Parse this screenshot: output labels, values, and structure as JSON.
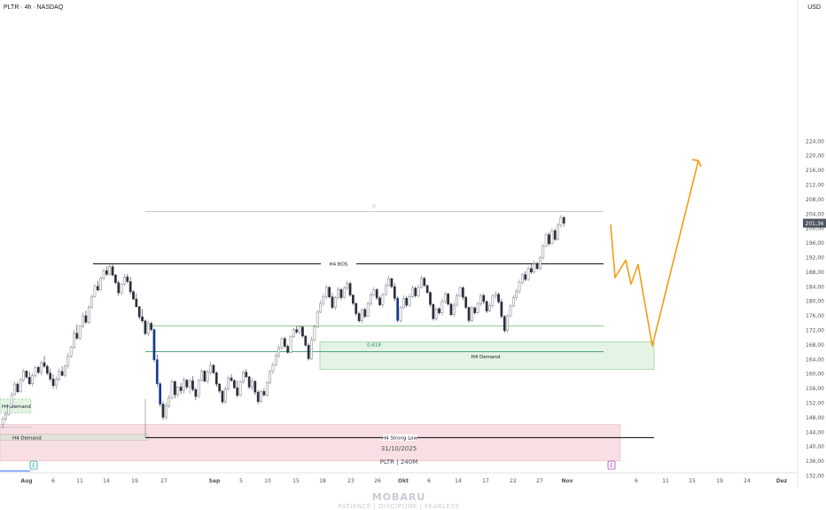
{
  "header": {
    "symbol_line": "PLTR · 4h · NASDAQ",
    "currency": "USD"
  },
  "watermark": {
    "title": "MOBARU",
    "tagline": "PATIENCE | DISCIPLINE | FEARLESS"
  },
  "footer": {
    "date": "31/10/2025",
    "symbol_tf": "PLTR | 240M"
  },
  "chart_data": {
    "type": "candlestick",
    "symbol": "PLTR",
    "timeframe": "4h",
    "exchange": "NASDAQ",
    "ylim": [
      129,
      230
    ],
    "y_ticks": [
      "132,00",
      "136,00",
      "140,00",
      "144,00",
      "148,00",
      "152,00",
      "156,00",
      "160,00",
      "164,00",
      "168,00",
      "172,00",
      "176,00",
      "180,00",
      "184,00",
      "188,00",
      "192,00",
      "196,00",
      "200,00",
      "204,00",
      "208,00",
      "212,00",
      "216,00",
      "220,00",
      "224,00"
    ],
    "x_ticks": [
      "Aug",
      "6",
      "11",
      "14",
      "19",
      "27",
      "Sep",
      "5",
      "10",
      "15",
      "18",
      "23",
      "26",
      "Okt",
      "6",
      "14",
      "17",
      "22",
      "27",
      "Nov",
      "6",
      "11",
      "15",
      "19",
      "24",
      "Dez"
    ],
    "last_price": "201,36",
    "earnings_markers": [
      "E",
      "E"
    ],
    "candles": [
      [
        146,
        148.2,
        144.8,
        147.5
      ],
      [
        147.5,
        149.5,
        146.9,
        148.8
      ],
      [
        148.8,
        151.4,
        148.4,
        150.9
      ],
      [
        150.9,
        154.9,
        150.4,
        154.2
      ],
      [
        154.2,
        157.8,
        153.9,
        157.1
      ],
      [
        157.1,
        157.6,
        154.6,
        155
      ],
      [
        155,
        158.9,
        154.7,
        158.3
      ],
      [
        158.3,
        161.3,
        157.7,
        160.7
      ],
      [
        160.7,
        160.9,
        158.6,
        159
      ],
      [
        159,
        160.5,
        156.8,
        157.2
      ],
      [
        157.2,
        160.1,
        156.5,
        159.5
      ],
      [
        159.5,
        162.2,
        158.8,
        161.7
      ],
      [
        161.7,
        162.1,
        159.9,
        160.3
      ],
      [
        160.3,
        163.5,
        159.5,
        163
      ],
      [
        163,
        164.9,
        161.5,
        162
      ],
      [
        162,
        162.5,
        159.6,
        160.1
      ],
      [
        160.1,
        161.4,
        157.9,
        158.5
      ],
      [
        158.5,
        159.8,
        155.9,
        156.7
      ],
      [
        156.7,
        159.2,
        155.7,
        158.4
      ],
      [
        158.4,
        161.4,
        157.8,
        160.6
      ],
      [
        160.6,
        162,
        159.3,
        159.5
      ],
      [
        159.5,
        162.5,
        159,
        162.1
      ],
      [
        162.1,
        165.7,
        161.4,
        164.8
      ],
      [
        164.8,
        167.7,
        164.3,
        167.2
      ],
      [
        167.2,
        172.1,
        166.8,
        171.1
      ],
      [
        171.1,
        173.5,
        169.3,
        169.7
      ],
      [
        169.7,
        173.4,
        169.2,
        173
      ],
      [
        173,
        176.8,
        172.5,
        175.9
      ],
      [
        175.9,
        177.3,
        173.6,
        174.1
      ],
      [
        174.1,
        178.9,
        173.6,
        178.2
      ],
      [
        178.2,
        181.7,
        177.8,
        181.1
      ],
      [
        181.1,
        184.6,
        180.9,
        184
      ],
      [
        184,
        185.5,
        182.6,
        183
      ],
      [
        183,
        186.6,
        182.8,
        186.2
      ],
      [
        186.2,
        188.9,
        185.6,
        188.3
      ],
      [
        188.3,
        189.5,
        186.9,
        187.3
      ],
      [
        187.3,
        189.9,
        187.1,
        189.4
      ],
      [
        189.4,
        190,
        186.7,
        187.1
      ],
      [
        187.1,
        187.4,
        184.6,
        185
      ],
      [
        185,
        185.6,
        181.4,
        182.2
      ],
      [
        182.2,
        184.9,
        181.6,
        184.6
      ],
      [
        184.6,
        187.4,
        184.2,
        186.6
      ],
      [
        186.6,
        187.4,
        184.8,
        185.3
      ],
      [
        185.3,
        186.6,
        181.8,
        182.5
      ],
      [
        182.5,
        183,
        180.2,
        180.5
      ],
      [
        180.5,
        182.1,
        178.2,
        178.4
      ],
      [
        178.4,
        178.6,
        174.9,
        175.6
      ],
      [
        175.6,
        177.8,
        173.9,
        174.5
      ],
      [
        174.5,
        174.9,
        170.5,
        171
      ],
      [
        171,
        174.5,
        170.2,
        173.8
      ],
      [
        173.8,
        174.3,
        171.6,
        172.1
      ],
      [
        172.1,
        172.4,
        163.1,
        163.8
      ],
      [
        163.8,
        165.2,
        156.4,
        157.2
      ],
      [
        157.2,
        157.7,
        150.9,
        151.6
      ],
      [
        151.6,
        152.4,
        147.2,
        148
      ],
      [
        148,
        152,
        147.3,
        151.1
      ],
      [
        151.1,
        154.1,
        150.5,
        153.4
      ],
      [
        153.4,
        158.4,
        152.9,
        157.8
      ],
      [
        157.8,
        158.1,
        153.2,
        154.2
      ],
      [
        154.2,
        156.7,
        153.4,
        156.3
      ],
      [
        156.3,
        157.4,
        154.4,
        155.3
      ],
      [
        155.3,
        159.1,
        154.5,
        158.2
      ],
      [
        158.2,
        158.6,
        155.7,
        156.3
      ],
      [
        156.3,
        158.7,
        154.4,
        158
      ],
      [
        158,
        159.3,
        155.1,
        155.6
      ],
      [
        155.6,
        156.2,
        152.7,
        153.7
      ],
      [
        153.7,
        158.5,
        153.3,
        158.2
      ],
      [
        158.2,
        161.3,
        157.8,
        160.7
      ],
      [
        160.7,
        161,
        157.6,
        157.9
      ],
      [
        157.9,
        161.1,
        157.3,
        160.4
      ],
      [
        160.4,
        163.4,
        159.6,
        162.3
      ],
      [
        162.3,
        162.6,
        159.8,
        160.2
      ],
      [
        160.2,
        160.6,
        156.4,
        157.1
      ],
      [
        157.1,
        157.4,
        154.6,
        155.2
      ],
      [
        155.2,
        155.5,
        151.6,
        152.2
      ],
      [
        152.2,
        156.5,
        151.7,
        155.8
      ],
      [
        155.8,
        159.4,
        155.3,
        158.8
      ],
      [
        158.8,
        159.9,
        157.7,
        158.1
      ],
      [
        158.1,
        158.5,
        155.8,
        156.1
      ],
      [
        156.1,
        158.1,
        153.4,
        154
      ],
      [
        154,
        158.2,
        153.7,
        157.7
      ],
      [
        157.7,
        160.9,
        157.2,
        160.4
      ],
      [
        160.4,
        161.3,
        158.8,
        159.1
      ],
      [
        159.1,
        159.4,
        155.7,
        156.3
      ],
      [
        156.3,
        158.8,
        155.4,
        157.9
      ],
      [
        157.9,
        158.1,
        154.1,
        154.9
      ],
      [
        154.9,
        155.4,
        151.6,
        152.3
      ],
      [
        152.3,
        155.6,
        151.9,
        155.1
      ],
      [
        155.1,
        155.9,
        153.7,
        154.1
      ],
      [
        154.1,
        158,
        153.7,
        157.4
      ],
      [
        157.4,
        161,
        157.1,
        160.7
      ],
      [
        160.7,
        163.1,
        159.9,
        162.4
      ],
      [
        162.4,
        165.6,
        162,
        164.9
      ],
      [
        164.9,
        167.8,
        164.3,
        167.1
      ],
      [
        167.1,
        170,
        166.5,
        169.6
      ],
      [
        169.6,
        170.1,
        167,
        167.5
      ],
      [
        167.5,
        168,
        165.5,
        165.8
      ],
      [
        165.8,
        170.6,
        165.5,
        170.1
      ],
      [
        170.1,
        172.6,
        169.8,
        172.1
      ],
      [
        172.1,
        173.1,
        170.9,
        171.4
      ],
      [
        171.4,
        173.4,
        170.7,
        172.8
      ],
      [
        172.8,
        173.1,
        169.9,
        170.3
      ],
      [
        170.3,
        170.6,
        167.4,
        167.8
      ],
      [
        167.8,
        168.4,
        163.6,
        164.1
      ],
      [
        164.1,
        170.1,
        163.8,
        169.3
      ],
      [
        169.3,
        173.5,
        168.8,
        172.8
      ],
      [
        172.8,
        177.5,
        172.5,
        176.9
      ],
      [
        176.9,
        180.1,
        176.6,
        179.3
      ],
      [
        179.3,
        181.9,
        178.6,
        181.2
      ],
      [
        181.2,
        184.4,
        180.4,
        183.7
      ],
      [
        183.7,
        184.1,
        180.7,
        181.1
      ],
      [
        181.1,
        182.2,
        177.7,
        178.2
      ],
      [
        178.2,
        181.4,
        177.5,
        180.9
      ],
      [
        180.9,
        183.8,
        180.5,
        183.1
      ],
      [
        183.1,
        183.6,
        180.2,
        180.9
      ],
      [
        180.9,
        184,
        180.6,
        183.5
      ],
      [
        183.5,
        185.5,
        182.9,
        184.8
      ],
      [
        184.8,
        185.3,
        181.1,
        181.6
      ],
      [
        181.6,
        181.8,
        178.8,
        179.3
      ],
      [
        179.3,
        179.6,
        175.9,
        176.5
      ],
      [
        176.5,
        177,
        174,
        174.5
      ],
      [
        174.5,
        177.9,
        173.8,
        177.6
      ],
      [
        177.6,
        178.1,
        175.2,
        175.7
      ],
      [
        175.7,
        179.8,
        175.5,
        179.2
      ],
      [
        179.2,
        182.4,
        178.7,
        181.6
      ],
      [
        181.6,
        183.8,
        181.2,
        183.1
      ],
      [
        183.1,
        183.5,
        180.2,
        180.8
      ],
      [
        180.8,
        181.4,
        178.5,
        178.9
      ],
      [
        178.9,
        182.3,
        178.2,
        181.7
      ],
      [
        181.7,
        184.9,
        181.5,
        184.2
      ],
      [
        184.2,
        186.9,
        183.9,
        186.1
      ],
      [
        186.1,
        186.4,
        183.4,
        183.9
      ],
      [
        183.9,
        184.8,
        180,
        180.7
      ],
      [
        180.7,
        181.4,
        174.1,
        174.6
      ],
      [
        174.6,
        178.7,
        174,
        178.2
      ],
      [
        178.2,
        181.5,
        177.7,
        180.7
      ],
      [
        180.7,
        181.4,
        178.3,
        178.8
      ],
      [
        178.8,
        182,
        178.4,
        181.2
      ],
      [
        181.2,
        184.3,
        180.8,
        183.5
      ],
      [
        183.5,
        183.9,
        180.9,
        181.4
      ],
      [
        181.4,
        184.5,
        180.9,
        183.7
      ],
      [
        183.7,
        186.9,
        183.4,
        186.2
      ],
      [
        186.2,
        186.6,
        183.8,
        184.2
      ],
      [
        184.2,
        184.5,
        181.9,
        182.3
      ],
      [
        182.3,
        182.6,
        178.3,
        179
      ],
      [
        179,
        179.4,
        174.6,
        175.1
      ],
      [
        175.1,
        178.2,
        174.5,
        177.8
      ],
      [
        177.8,
        178.3,
        176.2,
        176.7
      ],
      [
        176.7,
        180.5,
        176,
        179.8
      ],
      [
        179.8,
        182.5,
        179.2,
        181.9
      ],
      [
        181.9,
        182.2,
        178.7,
        179.1
      ],
      [
        179.1,
        179.5,
        175.8,
        176.2
      ],
      [
        176.2,
        179.5,
        175.6,
        178.8
      ],
      [
        178.8,
        182.1,
        178.5,
        181.4
      ],
      [
        181.4,
        184.1,
        181,
        183.6
      ],
      [
        183.6,
        184,
        180.2,
        181
      ],
      [
        181,
        181.4,
        177.8,
        178.2
      ],
      [
        178.2,
        178.4,
        174,
        174.6
      ],
      [
        174.6,
        178.6,
        174.2,
        178.1
      ],
      [
        178.1,
        178.4,
        176.1,
        176.7
      ],
      [
        176.7,
        179.8,
        176.3,
        179.2
      ],
      [
        179.2,
        181.9,
        178.6,
        181.5
      ],
      [
        181.5,
        182,
        179.1,
        179.8
      ],
      [
        179.8,
        180.1,
        176.6,
        177.2
      ],
      [
        177.2,
        179.4,
        176.9,
        178.7
      ],
      [
        178.7,
        181.9,
        178.1,
        181.3
      ],
      [
        181.3,
        182.7,
        180.5,
        181.8
      ],
      [
        181.8,
        182.3,
        179.3,
        179.7
      ],
      [
        179.7,
        180.6,
        175.1,
        175.7
      ],
      [
        175.7,
        176.1,
        171.2,
        171.8
      ],
      [
        171.8,
        176.2,
        171.3,
        175.9
      ],
      [
        175.9,
        179.2,
        175.4,
        178.6
      ],
      [
        178.6,
        181.5,
        178.3,
        180.9
      ],
      [
        180.9,
        183.3,
        180.2,
        182.6
      ],
      [
        182.6,
        185.9,
        182,
        185.1
      ],
      [
        185.1,
        187.6,
        184.6,
        187.2
      ],
      [
        187.2,
        188.2,
        185.4,
        185.9
      ],
      [
        185.9,
        189.6,
        185.4,
        188.9
      ],
      [
        188.9,
        190,
        187.4,
        187.9
      ],
      [
        187.9,
        191.1,
        187.4,
        190.2
      ],
      [
        190.2,
        190.8,
        188.5,
        188.9
      ],
      [
        188.9,
        192.4,
        188.4,
        191.8
      ],
      [
        191.8,
        195.7,
        191.2,
        195.1
      ],
      [
        195.1,
        198.7,
        194.8,
        198.2
      ],
      [
        198.2,
        198.8,
        195.1,
        195.7
      ],
      [
        195.7,
        200,
        195.4,
        199.3
      ],
      [
        199.3,
        199.9,
        196.5,
        196.9
      ],
      [
        196.9,
        201.4,
        196.6,
        200.8
      ],
      [
        200.8,
        203.6,
        200.1,
        202.9
      ],
      [
        202.9,
        203.3,
        200.4,
        201.36
      ]
    ],
    "levels": [
      {
        "label": "0",
        "price": 204.6,
        "color": "#b2b5be"
      },
      {
        "label": "H4 BOS",
        "price": 190.2,
        "color": "#000000"
      },
      {
        "label": "",
        "price": 173.1,
        "color": "#66bb6a"
      },
      {
        "label": "0,618",
        "price": 166.0,
        "color": "#1b8a5a"
      },
      {
        "label": "H4 Strong Low",
        "price": 142.4,
        "color": "#000000"
      },
      {
        "label": "H4 Demand",
        "price_range": [
          161.2,
          168.7
        ],
        "color": "#e3f3e4"
      },
      {
        "label": "H4 Demand",
        "price_range": [
          149.1,
          153.0
        ],
        "color": "#e3f3e4"
      },
      {
        "label": "H4 Demand",
        "price_range": [
          141.7,
          143.3
        ],
        "color": "#e2e2d8"
      },
      {
        "label": "",
        "price_range": [
          136.0,
          146.0
        ],
        "color": "#f8dfe3"
      }
    ],
    "projection": [
      [
        "27 Okt",
        201.0
      ],
      [
        "28 Okt",
        186.4
      ],
      [
        "29 Okt",
        191.2
      ],
      [
        "30 Okt",
        184.6
      ],
      [
        "31 Okt",
        190.0
      ],
      [
        "3 Nov",
        167.6
      ],
      [
        "11 Nov",
        218.6
      ]
    ]
  }
}
